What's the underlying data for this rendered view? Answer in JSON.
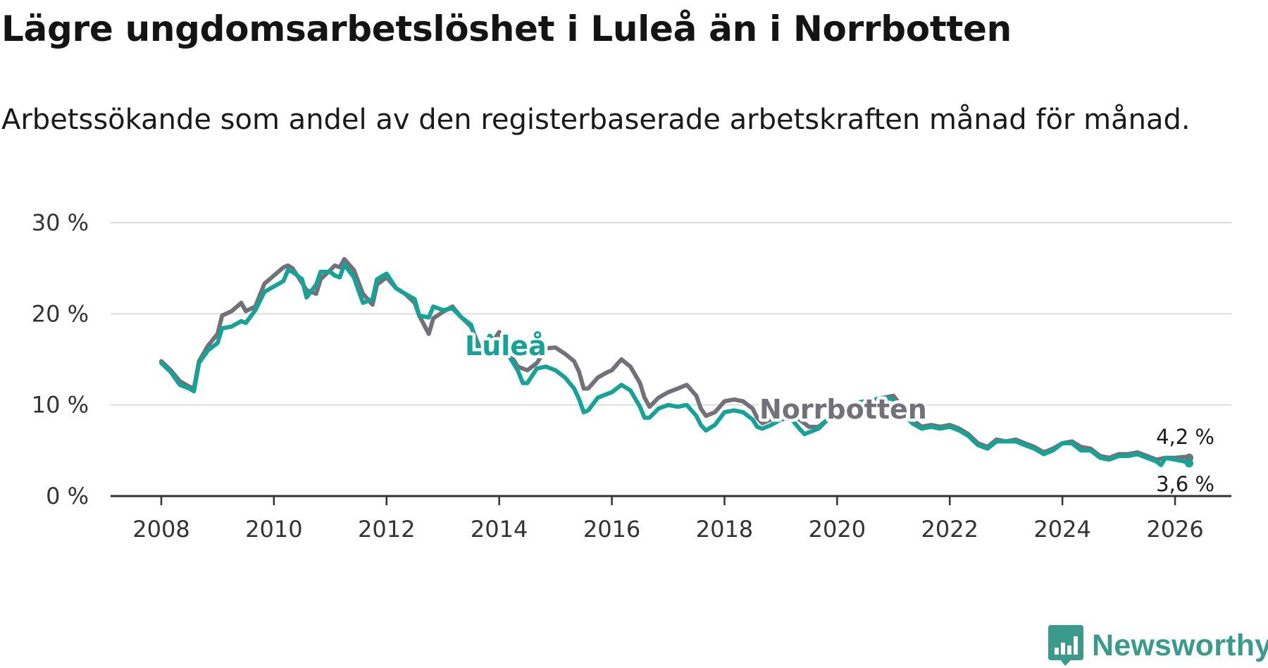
{
  "header": {
    "title": "Lägre ungdomsarbetslöshet i Luleå än i Norrbotten",
    "subtitle": "Arbetssökande som andel av den registerbaserade arbetskraften månad för månad."
  },
  "brand": {
    "name": "Newsworthy",
    "color": "#3a9a8c"
  },
  "chart_data": {
    "type": "line",
    "title": "Lägre ungdomsarbetslöshet i Luleå än i Norrbotten",
    "subtitle": "Arbetssökande som andel av den registerbaserade arbetskraften månad för månad.",
    "xlabel": "",
    "ylabel": "",
    "xlim": [
      2007.1,
      2027.0
    ],
    "ylim": [
      0,
      30
    ],
    "grid": true,
    "y_ticks": [
      0,
      10,
      20,
      30
    ],
    "y_tick_labels": [
      "0 %",
      "10 %",
      "20 %",
      "30 %"
    ],
    "x_ticks": [
      2008,
      2010,
      2012,
      2014,
      2016,
      2018,
      2020,
      2022,
      2024,
      2026
    ],
    "x_tick_labels": [
      "2008",
      "2010",
      "2012",
      "2014",
      "2016",
      "2018",
      "2020",
      "2022",
      "2024",
      "2026"
    ],
    "series": [
      {
        "name": "Norrbotten",
        "label": "Norrbotten",
        "color": "#727179",
        "end_label": "4,2 %",
        "points": [
          [
            2008.0,
            14.8
          ],
          [
            2008.17,
            13.8
          ],
          [
            2008.33,
            12.6
          ],
          [
            2008.5,
            12.0
          ],
          [
            2008.58,
            11.8
          ],
          [
            2008.67,
            14.8
          ],
          [
            2008.83,
            16.5
          ],
          [
            2009.0,
            17.8
          ],
          [
            2009.08,
            19.8
          ],
          [
            2009.25,
            20.3
          ],
          [
            2009.42,
            21.2
          ],
          [
            2009.5,
            20.3
          ],
          [
            2009.67,
            20.8
          ],
          [
            2009.83,
            23.3
          ],
          [
            2010.0,
            24.2
          ],
          [
            2010.17,
            25.1
          ],
          [
            2010.25,
            25.3
          ],
          [
            2010.33,
            25.0
          ],
          [
            2010.5,
            23.4
          ],
          [
            2010.58,
            22.6
          ],
          [
            2010.75,
            22.2
          ],
          [
            2010.83,
            23.8
          ],
          [
            2011.0,
            24.8
          ],
          [
            2011.08,
            25.3
          ],
          [
            2011.17,
            25.1
          ],
          [
            2011.25,
            26.0
          ],
          [
            2011.42,
            24.8
          ],
          [
            2011.58,
            22.2
          ],
          [
            2011.75,
            21.0
          ],
          [
            2011.83,
            23.2
          ],
          [
            2012.0,
            24.0
          ],
          [
            2012.17,
            22.8
          ],
          [
            2012.33,
            22.2
          ],
          [
            2012.5,
            21.2
          ],
          [
            2012.58,
            19.8
          ],
          [
            2012.75,
            17.8
          ],
          [
            2012.83,
            19.5
          ],
          [
            2013.0,
            20.2
          ],
          [
            2013.17,
            20.8
          ],
          [
            2013.33,
            19.6
          ],
          [
            2013.5,
            18.6
          ],
          [
            2013.67,
            16.0
          ],
          [
            2013.83,
            16.4
          ],
          [
            2014.0,
            18.0
          ],
          [
            2014.17,
            15.8
          ],
          [
            2014.33,
            14.2
          ],
          [
            2014.5,
            13.8
          ],
          [
            2014.67,
            14.6
          ],
          [
            2014.83,
            16.2
          ],
          [
            2015.0,
            16.3
          ],
          [
            2015.17,
            15.6
          ],
          [
            2015.33,
            14.8
          ],
          [
            2015.42,
            13.6
          ],
          [
            2015.5,
            11.8
          ],
          [
            2015.58,
            11.8
          ],
          [
            2015.75,
            13.0
          ],
          [
            2015.92,
            13.6
          ],
          [
            2016.0,
            13.8
          ],
          [
            2016.17,
            15.0
          ],
          [
            2016.33,
            14.2
          ],
          [
            2016.5,
            12.4
          ],
          [
            2016.58,
            10.8
          ],
          [
            2016.67,
            9.8
          ],
          [
            2016.83,
            10.8
          ],
          [
            2017.0,
            11.4
          ],
          [
            2017.17,
            11.8
          ],
          [
            2017.33,
            12.2
          ],
          [
            2017.5,
            11.0
          ],
          [
            2017.58,
            9.6
          ],
          [
            2017.67,
            8.8
          ],
          [
            2017.83,
            9.2
          ],
          [
            2018.0,
            10.4
          ],
          [
            2018.17,
            10.6
          ],
          [
            2018.33,
            10.4
          ],
          [
            2018.5,
            9.6
          ],
          [
            2018.58,
            8.6
          ],
          [
            2018.67,
            8.0
          ],
          [
            2018.83,
            8.4
          ],
          [
            2019.0,
            9.0
          ],
          [
            2019.17,
            9.2
          ],
          [
            2019.33,
            8.4
          ],
          [
            2019.5,
            7.6
          ],
          [
            2019.67,
            7.6
          ],
          [
            2019.83,
            8.4
          ],
          [
            2020.0,
            8.8
          ],
          [
            2020.17,
            9.6
          ],
          [
            2020.33,
            10.2
          ],
          [
            2020.5,
            10.4
          ],
          [
            2020.67,
            10.6
          ],
          [
            2020.83,
            10.8
          ],
          [
            2021.0,
            11.0
          ],
          [
            2021.17,
            9.6
          ],
          [
            2021.33,
            8.4
          ],
          [
            2021.5,
            7.6
          ],
          [
            2021.67,
            7.8
          ],
          [
            2021.83,
            7.6
          ],
          [
            2022.0,
            7.8
          ],
          [
            2022.17,
            7.4
          ],
          [
            2022.33,
            6.8
          ],
          [
            2022.5,
            5.8
          ],
          [
            2022.67,
            5.4
          ],
          [
            2022.83,
            6.2
          ],
          [
            2023.0,
            6.0
          ],
          [
            2023.17,
            6.2
          ],
          [
            2023.33,
            5.8
          ],
          [
            2023.5,
            5.4
          ],
          [
            2023.67,
            4.8
          ],
          [
            2023.83,
            5.2
          ],
          [
            2024.0,
            5.8
          ],
          [
            2024.17,
            6.0
          ],
          [
            2024.33,
            5.4
          ],
          [
            2024.5,
            5.2
          ],
          [
            2024.67,
            4.4
          ],
          [
            2024.83,
            4.2
          ],
          [
            2025.0,
            4.6
          ],
          [
            2025.17,
            4.6
          ],
          [
            2025.33,
            4.8
          ],
          [
            2025.5,
            4.4
          ],
          [
            2025.67,
            4.0
          ],
          [
            2025.83,
            4.2
          ],
          [
            2026.0,
            4.2
          ],
          [
            2026.17,
            4.3
          ],
          [
            2026.25,
            4.2
          ]
        ]
      },
      {
        "name": "Luleå",
        "label": "Luleå",
        "color": "#15a398",
        "end_label": "3,6 %",
        "points": [
          [
            2008.0,
            14.6
          ],
          [
            2008.17,
            13.6
          ],
          [
            2008.33,
            12.2
          ],
          [
            2008.5,
            11.8
          ],
          [
            2008.58,
            11.5
          ],
          [
            2008.67,
            14.6
          ],
          [
            2008.83,
            16.0
          ],
          [
            2009.0,
            16.8
          ],
          [
            2009.08,
            18.4
          ],
          [
            2009.25,
            18.6
          ],
          [
            2009.42,
            19.2
          ],
          [
            2009.5,
            19.0
          ],
          [
            2009.67,
            20.4
          ],
          [
            2009.83,
            22.4
          ],
          [
            2010.0,
            23.0
          ],
          [
            2010.17,
            23.6
          ],
          [
            2010.25,
            24.8
          ],
          [
            2010.33,
            24.6
          ],
          [
            2010.5,
            23.8
          ],
          [
            2010.58,
            21.8
          ],
          [
            2010.75,
            23.2
          ],
          [
            2010.83,
            24.6
          ],
          [
            2011.0,
            24.6
          ],
          [
            2011.08,
            24.2
          ],
          [
            2011.17,
            24.0
          ],
          [
            2011.25,
            25.4
          ],
          [
            2011.42,
            24.0
          ],
          [
            2011.58,
            21.2
          ],
          [
            2011.75,
            21.6
          ],
          [
            2011.83,
            23.8
          ],
          [
            2012.0,
            24.4
          ],
          [
            2012.17,
            22.8
          ],
          [
            2012.33,
            22.2
          ],
          [
            2012.5,
            21.6
          ],
          [
            2012.58,
            19.8
          ],
          [
            2012.75,
            19.6
          ],
          [
            2012.83,
            20.8
          ],
          [
            2013.0,
            20.4
          ],
          [
            2013.17,
            20.6
          ],
          [
            2013.33,
            19.6
          ],
          [
            2013.5,
            18.8
          ],
          [
            2013.67,
            15.4
          ],
          [
            2013.83,
            17.6
          ],
          [
            2014.0,
            16.4
          ],
          [
            2014.17,
            15.4
          ],
          [
            2014.33,
            13.8
          ],
          [
            2014.42,
            12.4
          ],
          [
            2014.5,
            12.4
          ],
          [
            2014.67,
            14.0
          ],
          [
            2014.83,
            14.2
          ],
          [
            2015.0,
            13.8
          ],
          [
            2015.17,
            13.0
          ],
          [
            2015.33,
            11.8
          ],
          [
            2015.42,
            10.6
          ],
          [
            2015.5,
            9.2
          ],
          [
            2015.58,
            9.4
          ],
          [
            2015.75,
            10.8
          ],
          [
            2015.92,
            11.2
          ],
          [
            2016.0,
            11.4
          ],
          [
            2016.17,
            12.2
          ],
          [
            2016.33,
            11.6
          ],
          [
            2016.5,
            9.8
          ],
          [
            2016.58,
            8.6
          ],
          [
            2016.67,
            8.6
          ],
          [
            2016.83,
            9.6
          ],
          [
            2017.0,
            10.0
          ],
          [
            2017.17,
            9.8
          ],
          [
            2017.33,
            10.0
          ],
          [
            2017.5,
            8.8
          ],
          [
            2017.58,
            7.8
          ],
          [
            2017.67,
            7.2
          ],
          [
            2017.83,
            7.8
          ],
          [
            2018.0,
            9.2
          ],
          [
            2018.17,
            9.4
          ],
          [
            2018.33,
            9.2
          ],
          [
            2018.5,
            8.4
          ],
          [
            2018.58,
            7.6
          ],
          [
            2018.67,
            7.4
          ],
          [
            2018.83,
            7.8
          ],
          [
            2019.0,
            8.4
          ],
          [
            2019.17,
            8.6
          ],
          [
            2019.33,
            7.4
          ],
          [
            2019.42,
            6.8
          ],
          [
            2019.5,
            7.0
          ],
          [
            2019.67,
            7.4
          ],
          [
            2019.83,
            8.4
          ],
          [
            2020.0,
            8.8
          ],
          [
            2020.17,
            9.8
          ],
          [
            2020.33,
            10.2
          ],
          [
            2020.5,
            10.4
          ],
          [
            2020.67,
            10.6
          ],
          [
            2020.83,
            10.8
          ],
          [
            2021.0,
            10.6
          ],
          [
            2021.17,
            9.2
          ],
          [
            2021.33,
            8.0
          ],
          [
            2021.5,
            7.4
          ],
          [
            2021.67,
            7.6
          ],
          [
            2021.83,
            7.4
          ],
          [
            2022.0,
            7.6
          ],
          [
            2022.17,
            7.2
          ],
          [
            2022.33,
            6.6
          ],
          [
            2022.5,
            5.6
          ],
          [
            2022.67,
            5.2
          ],
          [
            2022.83,
            6.0
          ],
          [
            2023.0,
            6.0
          ],
          [
            2023.17,
            6.0
          ],
          [
            2023.33,
            5.6
          ],
          [
            2023.5,
            5.2
          ],
          [
            2023.67,
            4.6
          ],
          [
            2023.83,
            5.0
          ],
          [
            2024.0,
            5.8
          ],
          [
            2024.17,
            5.8
          ],
          [
            2024.33,
            5.0
          ],
          [
            2024.5,
            5.0
          ],
          [
            2024.67,
            4.2
          ],
          [
            2024.83,
            4.0
          ],
          [
            2025.0,
            4.4
          ],
          [
            2025.17,
            4.4
          ],
          [
            2025.33,
            4.6
          ],
          [
            2025.5,
            4.2
          ],
          [
            2025.67,
            3.8
          ],
          [
            2025.75,
            3.4
          ],
          [
            2025.83,
            4.2
          ],
          [
            2026.0,
            4.0
          ],
          [
            2026.17,
            3.8
          ],
          [
            2026.25,
            3.6
          ]
        ]
      }
    ]
  }
}
